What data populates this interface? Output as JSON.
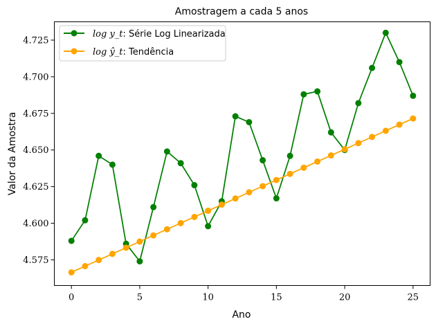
{
  "chart_data": {
    "type": "line",
    "title": "Amostragem a cada 5 anos",
    "xlabel": "Ano",
    "ylabel": "Valor da Amostra",
    "xlim": [
      -1.25,
      26.25
    ],
    "ylim": [
      4.5575,
      4.7375
    ],
    "xticks": [
      0,
      5,
      10,
      15,
      20,
      25
    ],
    "xtick_labels": [
      "0",
      "5",
      "10",
      "15",
      "20",
      "25"
    ],
    "yticks": [
      4.575,
      4.6,
      4.625,
      4.65,
      4.675,
      4.7,
      4.725
    ],
    "ytick_labels": [
      "4.575",
      "4.600",
      "4.625",
      "4.650",
      "4.675",
      "4.700",
      "4.725"
    ],
    "grid": false,
    "legend_position": "top-left",
    "x": [
      0,
      1,
      2,
      3,
      4,
      5,
      6,
      7,
      8,
      9,
      10,
      11,
      12,
      13,
      14,
      15,
      16,
      17,
      18,
      19,
      20,
      21,
      22,
      23,
      24,
      25
    ],
    "series": [
      {
        "name_math": "log y_t",
        "name": "log y_t: Série Log Linearizada",
        "name_suffix": ": Série Log Linearizada",
        "color": "#008000",
        "values": [
          4.588,
          4.602,
          4.646,
          4.64,
          4.586,
          4.574,
          4.611,
          4.649,
          4.641,
          4.626,
          4.598,
          4.615,
          4.673,
          4.669,
          4.643,
          4.617,
          4.646,
          4.688,
          4.69,
          4.662,
          4.65,
          4.682,
          4.706,
          4.73,
          4.71,
          4.687
        ]
      },
      {
        "name_math": "log ŷ_t",
        "name": "log ŷ_t: Tendência",
        "name_suffix": ": Tendência",
        "color": "#FFA500",
        "values": [
          4.5665,
          4.5707,
          4.5749,
          4.5791,
          4.5833,
          4.5875,
          4.5917,
          4.5959,
          4.6001,
          4.6043,
          4.6085,
          4.6127,
          4.6169,
          4.6211,
          4.6253,
          4.6295,
          4.6337,
          4.6379,
          4.6421,
          4.6463,
          4.6505,
          4.6547,
          4.6589,
          4.6631,
          4.6673,
          4.6715
        ]
      }
    ]
  }
}
